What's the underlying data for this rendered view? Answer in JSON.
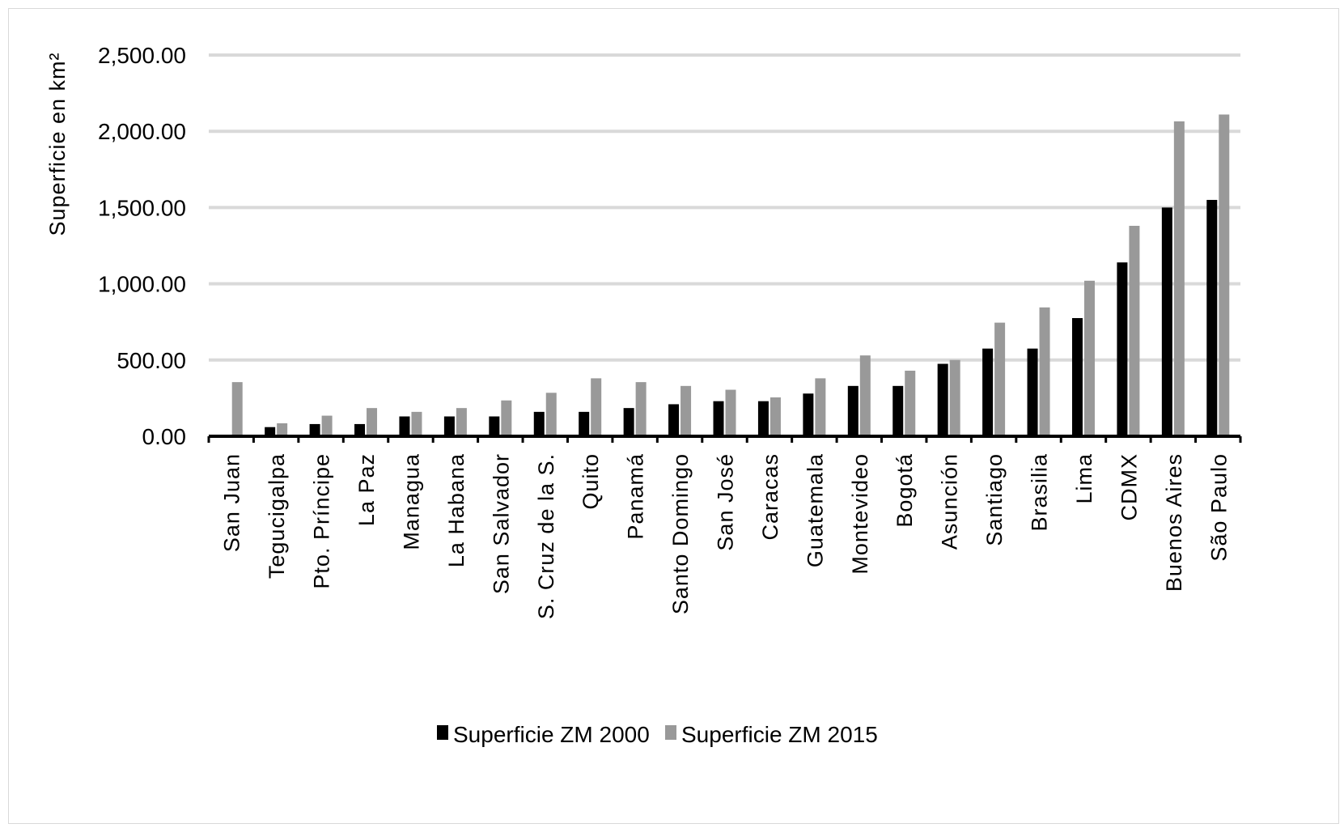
{
  "chart_data": {
    "type": "bar",
    "ylabel": "Superficie en km²",
    "xlabel": "",
    "ylim": [
      0,
      2500
    ],
    "yticks": [
      "0.00",
      "500.00",
      "1,000.00",
      "1,500.00",
      "2,000.00",
      "2,500.00"
    ],
    "ytick_values": [
      0,
      500,
      1000,
      1500,
      2000,
      2500
    ],
    "grid": true,
    "legend_position": "bottom",
    "categories": [
      "San Juan",
      "Tegucigalpa",
      "Pto. Príncipe",
      "La Paz",
      "Managua",
      "La Habana",
      "San Salvador",
      "S. Cruz de la S.",
      "Quito",
      "Panamá",
      "Santo Domingo",
      "San José",
      "Caracas",
      "Guatemala",
      "Montevideo",
      "Bogotá",
      "Asunción",
      "Santiago",
      "Brasilia",
      "Lima",
      "CDMX",
      "Buenos Aires",
      "São Paulo"
    ],
    "series": [
      {
        "name": "Superficie ZM 2000",
        "color": "#000000",
        "values": [
          0,
          60,
          80,
          80,
          130,
          130,
          130,
          160,
          160,
          185,
          210,
          230,
          230,
          280,
          330,
          330,
          475,
          575,
          575,
          775,
          1140,
          1500,
          1550
        ]
      },
      {
        "name": "Superficie ZM 2015",
        "color": "#999999",
        "values": [
          355,
          85,
          135,
          185,
          160,
          185,
          235,
          285,
          380,
          355,
          330,
          305,
          255,
          380,
          530,
          430,
          500,
          745,
          845,
          1020,
          1380,
          2065,
          2110
        ]
      }
    ]
  }
}
